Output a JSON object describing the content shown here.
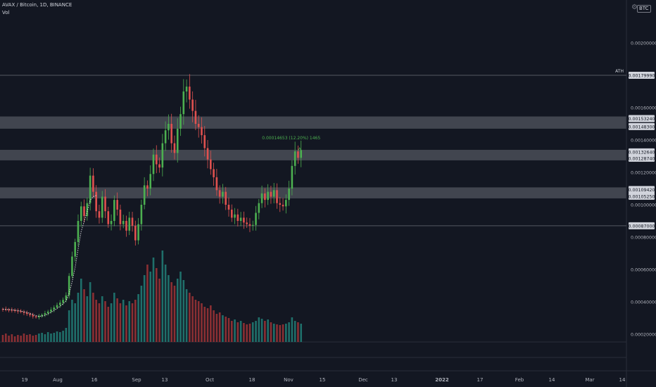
{
  "header": {
    "symbol_line": "AVAX / Bitcoin, 1D, BINANCE",
    "indicator": "Vol"
  },
  "currency_badge": "BTC",
  "icons": {
    "settings": "gear-icon"
  },
  "colors": {
    "background": "#131722",
    "up": "#4caf50",
    "down": "#e0514f",
    "vol_up": "#1f6f6a",
    "vol_down": "#8a2f33",
    "ma": "#ffffff",
    "zone": "#4a4d57",
    "measure": "#4caf50"
  },
  "chart_data": {
    "type": "candlestick",
    "y_axis": {
      "min": 0.0001,
      "max": 0.0021,
      "tick_labels": [
        "0.00200000",
        "0.00160000",
        "0.00140000",
        "0.00120000",
        "0.00100000",
        "0.00080000",
        "0.00060000",
        "0.00040000",
        "0.00020000"
      ],
      "tick_values": [
        0.002,
        0.0016,
        0.0014,
        0.0012,
        0.001,
        0.0008,
        0.0006,
        0.0004,
        0.0002
      ]
    },
    "x_axis": {
      "tick_labels": [
        "19",
        "Aug",
        "16",
        "Sep",
        "13",
        "Oct",
        "18",
        "Nov",
        "15",
        "Dec",
        "13",
        "2022",
        "17",
        "Feb",
        "14",
        "Mar",
        "14"
      ],
      "bold": [
        "2022"
      ]
    },
    "levels": [
      {
        "label": "ATH",
        "value": 0.0017999,
        "value_label": "0.00179990",
        "kind": "line"
      },
      {
        "kind": "zone",
        "low": 0.001483,
        "high": 0.0015324,
        "labels": [
          "0.00153240",
          "0.00148300"
        ]
      },
      {
        "kind": "zone",
        "low": 0.0012874,
        "high": 0.0013264,
        "labels": [
          "0.00132640",
          "0.00128740"
        ]
      },
      {
        "kind": "zone",
        "low": 0.0010525,
        "high": 0.0010942,
        "labels": [
          "0.00109420",
          "0.00105250"
        ]
      },
      {
        "kind": "line",
        "value": 0.00087,
        "value_label": "0.00087000"
      }
    ],
    "measure_annotation": "0.00014653 (12.20%) 1465",
    "closes": [
      0.000355,
      0.000352,
      0.00035,
      0.000348,
      0.000345,
      0.000342,
      0.000338,
      0.000332,
      0.000325,
      0.000318,
      0.00031,
      0.000305,
      0.000312,
      0.00032,
      0.00033,
      0.00034,
      0.000352,
      0.000365,
      0.00038,
      0.000395,
      0.000412,
      0.00044,
      0.00056,
      0.00068,
      0.00077,
      0.0009,
      0.00099,
      0.00093,
      0.00101,
      0.00118,
      0.00108,
      0.00096,
      0.00092,
      0.00105,
      0.00096,
      0.00088,
      0.0009,
      0.00103,
      0.00097,
      0.00088,
      0.0009,
      0.00084,
      0.00092,
      0.00087,
      0.00078,
      0.00088,
      0.001,
      0.00112,
      0.0011,
      0.00119,
      0.00131,
      0.00125,
      0.00123,
      0.00138,
      0.00146,
      0.0015,
      0.00138,
      0.00132,
      0.00147,
      0.00156,
      0.0017,
      0.00173,
      0.00165,
      0.00158,
      0.0015,
      0.00148,
      0.00143,
      0.00135,
      0.00128,
      0.00122,
      0.00117,
      0.00109,
      0.00105,
      0.00108,
      0.001,
      0.00097,
      0.00092,
      0.00094,
      0.0009,
      0.00092,
      0.00089,
      0.00088,
      0.00087,
      0.000875,
      0.00095,
      0.00101,
      0.00107,
      0.00103,
      0.00108,
      0.00105,
      0.00109,
      0.00101,
      0.001,
      0.00099,
      0.00103,
      0.0011,
      0.00124,
      0.00133,
      0.00129,
      0.001337
    ],
    "volumes": [
      10,
      12,
      9,
      11,
      8,
      10,
      9,
      12,
      10,
      11,
      9,
      10,
      12,
      13,
      11,
      14,
      12,
      13,
      15,
      14,
      16,
      20,
      45,
      60,
      55,
      70,
      90,
      75,
      65,
      85,
      70,
      60,
      55,
      65,
      58,
      50,
      55,
      70,
      62,
      55,
      60,
      52,
      58,
      55,
      60,
      68,
      80,
      95,
      110,
      100,
      120,
      105,
      90,
      130,
      110,
      95,
      85,
      80,
      90,
      100,
      88,
      75,
      70,
      65,
      60,
      58,
      55,
      50,
      48,
      52,
      45,
      40,
      42,
      38,
      36,
      34,
      30,
      32,
      28,
      30,
      27,
      25,
      26,
      28,
      30,
      35,
      33,
      30,
      32,
      28,
      26,
      25,
      24,
      25,
      26,
      28,
      35,
      30,
      28,
      26
    ]
  }
}
